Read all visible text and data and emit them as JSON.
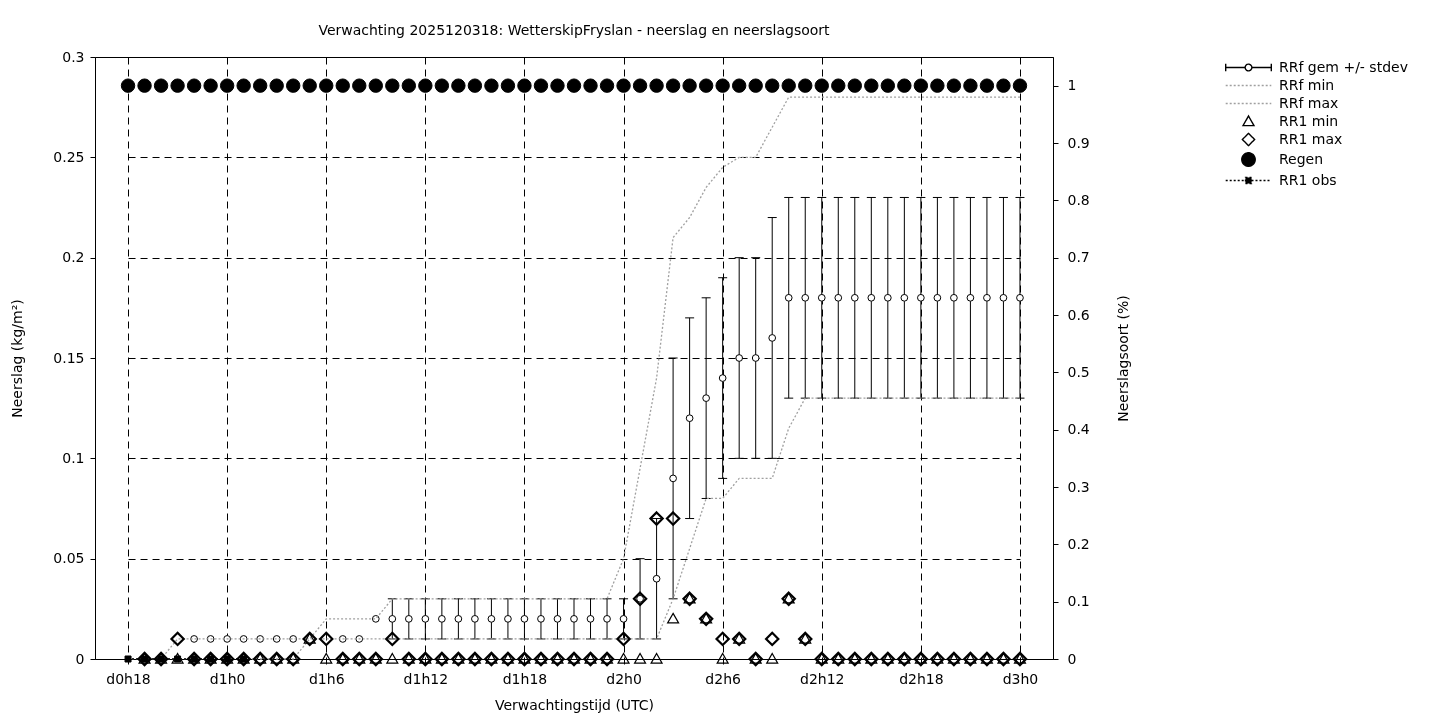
{
  "chart_data": {
    "type": "scatter",
    "title": "Verwachting 2025120318: WetterskipFryslan - neerslag en neerslagsoort",
    "xlabel": "Verwachtingstijd (UTC)",
    "ylabel": "Neerslag (kg/m²)",
    "y2label": "Neerslagsoort (%)",
    "categories": [
      "d0h18",
      null,
      null,
      null,
      null,
      null,
      "d1h0",
      null,
      null,
      null,
      null,
      null,
      "d1h6",
      null,
      null,
      null,
      null,
      null,
      "d1h12",
      null,
      null,
      null,
      null,
      null,
      "d1h18",
      null,
      null,
      null,
      null,
      null,
      "d2h0",
      null,
      null,
      null,
      null,
      null,
      "d2h6",
      null,
      null,
      null,
      null,
      null,
      "d2h12",
      null,
      null,
      null,
      null,
      null,
      "d2h18",
      null,
      null,
      null,
      null,
      null,
      "d3h0"
    ],
    "ylim": [
      0,
      0.3
    ],
    "yticks": [
      0,
      0.05,
      0.1,
      0.15,
      0.2,
      0.25,
      0.3
    ],
    "y2lim": [
      0,
      1.05
    ],
    "y2ticks": [
      0,
      0.1,
      0.2,
      0.3,
      0.4,
      0.5,
      0.6,
      0.7,
      0.8,
      0.9,
      1
    ],
    "grid": true,
    "legend": "top right",
    "series": [
      {
        "name": "RRf gem +/- stdev",
        "marker": "circle",
        "color": "#000000",
        "values": [
          null,
          null,
          null,
          null,
          0.01,
          0.01,
          0.01,
          0.01,
          0.01,
          0.01,
          0.01,
          null,
          null,
          0.01,
          0.01,
          0.02,
          0.02,
          0.02,
          0.02,
          0.02,
          0.02,
          0.02,
          0.02,
          0.02,
          0.02,
          0.02,
          0.02,
          0.02,
          0.02,
          0.02,
          0.02,
          0.03,
          0.04,
          0.09,
          0.12,
          0.13,
          0.14,
          0.15,
          0.15,
          0.16,
          0.18,
          0.18,
          0.18,
          0.18,
          0.18,
          0.18,
          0.18,
          0.18,
          0.18,
          0.18,
          0.18,
          0.18,
          0.18,
          0.18,
          0.18
        ],
        "errors": [
          null,
          null,
          null,
          null,
          null,
          null,
          null,
          null,
          null,
          null,
          null,
          null,
          null,
          null,
          null,
          null,
          0.01,
          0.01,
          0.01,
          0.01,
          0.01,
          0.01,
          0.01,
          0.01,
          0.01,
          0.01,
          0.01,
          0.01,
          0.01,
          0.01,
          0.01,
          0.02,
          0.03,
          0.06,
          0.05,
          0.05,
          0.05,
          0.05,
          0.05,
          0.06,
          0.05,
          0.05,
          0.05,
          0.05,
          0.05,
          0.05,
          0.05,
          0.05,
          0.05,
          0.05,
          0.05,
          0.05,
          0.05,
          0.05,
          0.05
        ]
      },
      {
        "name": "RRf min",
        "type": "line",
        "line_style": "dotted",
        "color": "#a0a0a0",
        "values": [
          0,
          0,
          0,
          0,
          0,
          0,
          0,
          0,
          0,
          0,
          0,
          0.01,
          0.01,
          0.01,
          0.01,
          0.01,
          0.01,
          0.01,
          0.01,
          0.01,
          0.01,
          0.01,
          0.01,
          0.01,
          0.01,
          0.01,
          0.01,
          0.01,
          0.01,
          0.01,
          0.01,
          0.01,
          0.01,
          0.03,
          0.055,
          0.08,
          0.08,
          0.09,
          0.09,
          0.09,
          0.115,
          0.13,
          0.13,
          0.13,
          0.13,
          0.13,
          0.13,
          0.13,
          0.13,
          0.13,
          0.13,
          0.13,
          0.13,
          0.13,
          0.13
        ]
      },
      {
        "name": "RRf max",
        "type": "line",
        "line_style": "dotted",
        "color": "#a0a0a0",
        "values": [
          0,
          0,
          0,
          0.01,
          0.01,
          0.01,
          0.01,
          0.01,
          0.01,
          0.01,
          0.01,
          0.01,
          0.02,
          0.02,
          0.02,
          0.02,
          0.03,
          0.03,
          0.03,
          0.03,
          0.03,
          0.03,
          0.03,
          0.03,
          0.03,
          0.03,
          0.03,
          0.03,
          0.03,
          0.03,
          0.05,
          0.095,
          0.14,
          0.21,
          0.22,
          0.235,
          0.245,
          0.25,
          0.25,
          0.265,
          0.28,
          0.28,
          0.28,
          0.28,
          0.28,
          0.28,
          0.28,
          0.28,
          0.28,
          0.28,
          0.28,
          0.28,
          0.28,
          0.28,
          0.28
        ]
      },
      {
        "name": "RR1 min",
        "marker": "triangle",
        "color": "#000000",
        "values": [
          null,
          0,
          0,
          0,
          0,
          0,
          0,
          0,
          0,
          0,
          0,
          0.01,
          0,
          0,
          0,
          0,
          0,
          0,
          0,
          0,
          0,
          0,
          0,
          0,
          0,
          0,
          0,
          0,
          0,
          0,
          0,
          0,
          0,
          0.02,
          0.03,
          0.02,
          0,
          0.01,
          0,
          0,
          0.03,
          0.01,
          0,
          0,
          0,
          0,
          0,
          0,
          0,
          0,
          0,
          0,
          0,
          0,
          0
        ]
      },
      {
        "name": "RR1 max",
        "marker": "diamond",
        "color": "#000000",
        "values": [
          null,
          0,
          0,
          0.01,
          0,
          0,
          0,
          0,
          0,
          0,
          0,
          0.01,
          0.01,
          0,
          0,
          0,
          0.01,
          0,
          0,
          0,
          0,
          0,
          0,
          0,
          0,
          0,
          0,
          0,
          0,
          0,
          0.01,
          0.03,
          0.07,
          0.07,
          0.03,
          0.02,
          0.01,
          0.01,
          0,
          0.01,
          0.03,
          0.01,
          0,
          0,
          0,
          0,
          0,
          0,
          0,
          0,
          0,
          0,
          0,
          0,
          0
        ]
      },
      {
        "name": "Regen",
        "marker": "circle",
        "axis": "y2",
        "color": "#000000",
        "values": [
          1,
          1,
          1,
          1,
          1,
          1,
          1,
          1,
          1,
          1,
          1,
          1,
          1,
          1,
          1,
          1,
          1,
          1,
          1,
          1,
          1,
          1,
          1,
          1,
          1,
          1,
          1,
          1,
          1,
          1,
          1,
          1,
          1,
          1,
          1,
          1,
          1,
          1,
          1,
          1,
          1,
          1,
          1,
          1,
          1,
          1,
          1,
          1,
          1,
          1,
          1,
          1,
          1,
          1,
          1
        ]
      },
      {
        "name": "RR1 obs",
        "type": "line",
        "marker": "square",
        "line_style": "dotted",
        "color": "#000000",
        "values": [
          0,
          0,
          0,
          0,
          0,
          0,
          0,
          0,
          null,
          null,
          null,
          null,
          null,
          null,
          null,
          null,
          null,
          null,
          null,
          null,
          null,
          null,
          null,
          null,
          null,
          null,
          null,
          null,
          null,
          null,
          null,
          null,
          null,
          null,
          null,
          null,
          null,
          null,
          null,
          null,
          null,
          null,
          null,
          null,
          null,
          null,
          null,
          null,
          null,
          null,
          null,
          null,
          null,
          null,
          null
        ]
      }
    ]
  }
}
